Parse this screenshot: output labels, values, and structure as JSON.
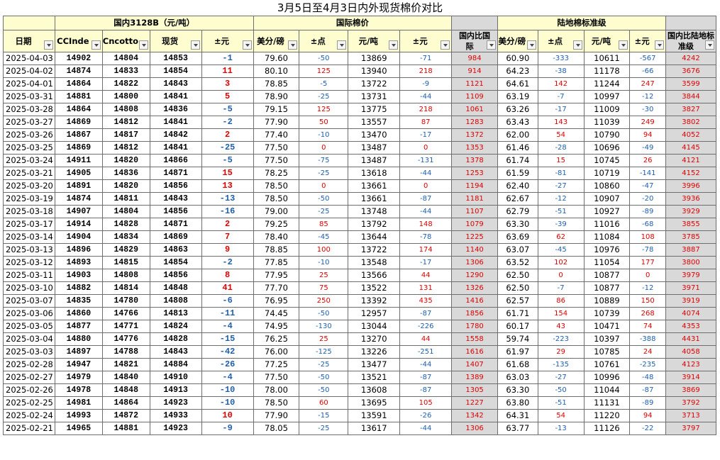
{
  "title": "3月5日至4月3日内外现货棉价对比",
  "groups": {
    "domestic": "国内3128B（元/吨）",
    "international": "国际棉价",
    "land": "陆地棉标准级"
  },
  "columns": {
    "date": "日期",
    "ccindex": "CCInde",
    "cncotton": "Cncotto",
    "spot": "现货",
    "chg_yuan": "±元",
    "usd_lb": "美分/磅",
    "chg_pt": "±点",
    "yuan_ton": "元/吨",
    "chg_yuan2": "±元",
    "diff_intl": "国内比国际",
    "usd_lb2": "美分/磅",
    "chg_pt2": "±点",
    "yuan_ton2": "元/吨",
    "chg_yuan3": "±元",
    "diff_land": "国内比陆地标准级"
  },
  "rows": [
    [
      "2025-04-03",
      "14902",
      "14804",
      "14853",
      "-1",
      "79.60",
      "-50",
      "13869",
      "-71",
      "984",
      "60.90",
      "-333",
      "10611",
      "-567",
      "4242"
    ],
    [
      "2025-04-02",
      "14874",
      "14833",
      "14854",
      "11",
      "80.10",
      "125",
      "13940",
      "218",
      "914",
      "64.23",
      "-38",
      "11178",
      "-66",
      "3676"
    ],
    [
      "2025-04-01",
      "14864",
      "14822",
      "14843",
      "3",
      "78.85",
      "-5",
      "13722",
      "-9",
      "1121",
      "64.61",
      "142",
      "11244",
      "247",
      "3599"
    ],
    [
      "2025-03-31",
      "14881",
      "14800",
      "14841",
      "5",
      "78.90",
      "-25",
      "13731",
      "-44",
      "1109",
      "63.19",
      "-7",
      "10997",
      "-12",
      "3844"
    ],
    [
      "2025-03-28",
      "14864",
      "14808",
      "14836",
      "-5",
      "79.15",
      "125",
      "13775",
      "218",
      "1061",
      "63.26",
      "-17",
      "11009",
      "-30",
      "3827"
    ],
    [
      "2025-03-27",
      "14869",
      "14812",
      "14841",
      "-2",
      "77.90",
      "50",
      "13557",
      "87",
      "1283",
      "63.43",
      "143",
      "11039",
      "249",
      "3802"
    ],
    [
      "2025-03-26",
      "14867",
      "14817",
      "14842",
      "2",
      "77.40",
      "-10",
      "13470",
      "-17",
      "1372",
      "62.00",
      "54",
      "10790",
      "94",
      "4052"
    ],
    [
      "2025-03-25",
      "14869",
      "14812",
      "14841",
      "-25",
      "77.50",
      "0",
      "13487",
      "0",
      "1353",
      "61.46",
      "-28",
      "10696",
      "-49",
      "4145"
    ],
    [
      "2025-03-24",
      "14911",
      "14820",
      "14866",
      "-5",
      "77.50",
      "-75",
      "13487",
      "-131",
      "1378",
      "61.74",
      "15",
      "10745",
      "26",
      "4121"
    ],
    [
      "2025-03-21",
      "14905",
      "14836",
      "14871",
      "15",
      "78.25",
      "-25",
      "13618",
      "-44",
      "1253",
      "61.59",
      "-81",
      "10719",
      "-141",
      "4152"
    ],
    [
      "2025-03-20",
      "14891",
      "14820",
      "14856",
      "13",
      "78.50",
      "0",
      "13661",
      "0",
      "1194",
      "62.40",
      "-27",
      "10860",
      "-47",
      "3996"
    ],
    [
      "2025-03-19",
      "14874",
      "14811",
      "14843",
      "-13",
      "78.50",
      "-50",
      "13661",
      "-87",
      "1181",
      "62.67",
      "-12",
      "10907",
      "-20",
      "3936"
    ],
    [
      "2025-03-18",
      "14907",
      "14804",
      "14856",
      "-16",
      "79.00",
      "-25",
      "13748",
      "-44",
      "1107",
      "62.79",
      "-51",
      "10927",
      "-89",
      "3929"
    ],
    [
      "2025-03-17",
      "14914",
      "14828",
      "14871",
      "2",
      "79.25",
      "85",
      "13792",
      "148",
      "1079",
      "63.30",
      "-39",
      "11016",
      "-68",
      "3855"
    ],
    [
      "2025-03-14",
      "14904",
      "14834",
      "14869",
      "7",
      "78.40",
      "-45",
      "13644",
      "-78",
      "1225",
      "63.69",
      "62",
      "11084",
      "108",
      "3785"
    ],
    [
      "2025-03-13",
      "14896",
      "14829",
      "14863",
      "9",
      "78.85",
      "100",
      "13722",
      "174",
      "1140",
      "63.07",
      "-45",
      "10976",
      "-78",
      "3887"
    ],
    [
      "2025-03-12",
      "14893",
      "14815",
      "14854",
      "-2",
      "77.85",
      "-10",
      "13548",
      "-17",
      "1306",
      "63.52",
      "102",
      "11054",
      "177",
      "3800"
    ],
    [
      "2025-03-11",
      "14903",
      "14808",
      "14856",
      "8",
      "77.95",
      "25",
      "13566",
      "44",
      "1290",
      "62.50",
      "0",
      "10877",
      "0",
      "3979"
    ],
    [
      "2025-03-10",
      "14882",
      "14814",
      "14848",
      "41",
      "77.70",
      "75",
      "13522",
      "131",
      "1326",
      "62.50",
      "-7",
      "10877",
      "-12",
      "3971"
    ],
    [
      "2025-03-07",
      "14835",
      "14780",
      "14808",
      "-6",
      "76.95",
      "250",
      "13392",
      "435",
      "1416",
      "62.57",
      "86",
      "10889",
      "150",
      "3919"
    ],
    [
      "2025-03-06",
      "14860",
      "14766",
      "14813",
      "-11",
      "74.45",
      "-50",
      "12957",
      "-87",
      "1856",
      "61.71",
      "154",
      "10739",
      "268",
      "4074"
    ],
    [
      "2025-03-05",
      "14877",
      "14771",
      "14824",
      "-4",
      "74.95",
      "-130",
      "13044",
      "-226",
      "1780",
      "60.17",
      "43",
      "10471",
      "74",
      "4353"
    ],
    [
      "2025-03-04",
      "14880",
      "14776",
      "14828",
      "-15",
      "76.25",
      "25",
      "13270",
      "44",
      "1558",
      "59.74",
      "-223",
      "10397",
      "-388",
      "4431"
    ],
    [
      "2025-03-03",
      "14897",
      "14788",
      "14843",
      "-42",
      "76.00",
      "-125",
      "13226",
      "-251",
      "1616",
      "61.97",
      "29",
      "10785",
      "24",
      "4058"
    ],
    [
      "2025-02-28",
      "14947",
      "14821",
      "14884",
      "-26",
      "77.25",
      "-25",
      "13477",
      "-44",
      "1407",
      "61.68",
      "-135",
      "10761",
      "-235",
      "4123"
    ],
    [
      "2025-02-27",
      "14979",
      "14840",
      "14910",
      "-4",
      "77.50",
      "-50",
      "13521",
      "-87",
      "1389",
      "63.03",
      "-27",
      "10996",
      "-48",
      "3914"
    ],
    [
      "2025-02-26",
      "14978",
      "14848",
      "14913",
      "-10",
      "78.00",
      "-50",
      "13608",
      "-87",
      "1305",
      "63.30",
      "-50",
      "11044",
      "-87",
      "3869"
    ],
    [
      "2025-02-25",
      "14981",
      "14864",
      "14923",
      "-10",
      "78.50",
      "60",
      "13695",
      "105",
      "1227",
      "63.80",
      "-51",
      "11131",
      "-89",
      "3792"
    ],
    [
      "2025-02-24",
      "14993",
      "14872",
      "14933",
      "10",
      "77.90",
      "-15",
      "13591",
      "-26",
      "1342",
      "64.31",
      "54",
      "11220",
      "94",
      "3713"
    ],
    [
      "2025-02-21",
      "14965",
      "14881",
      "14923",
      "-9",
      "78.05",
      "-25",
      "13617",
      "-44",
      "1306",
      "63.77",
      "-13",
      "11126",
      "-22",
      "3797"
    ]
  ],
  "colors": {
    "header_bg": "#fdfdd0",
    "diff_bg": "#d9d9d9",
    "positive": "#e00000",
    "negative": "#1f5fb0"
  }
}
